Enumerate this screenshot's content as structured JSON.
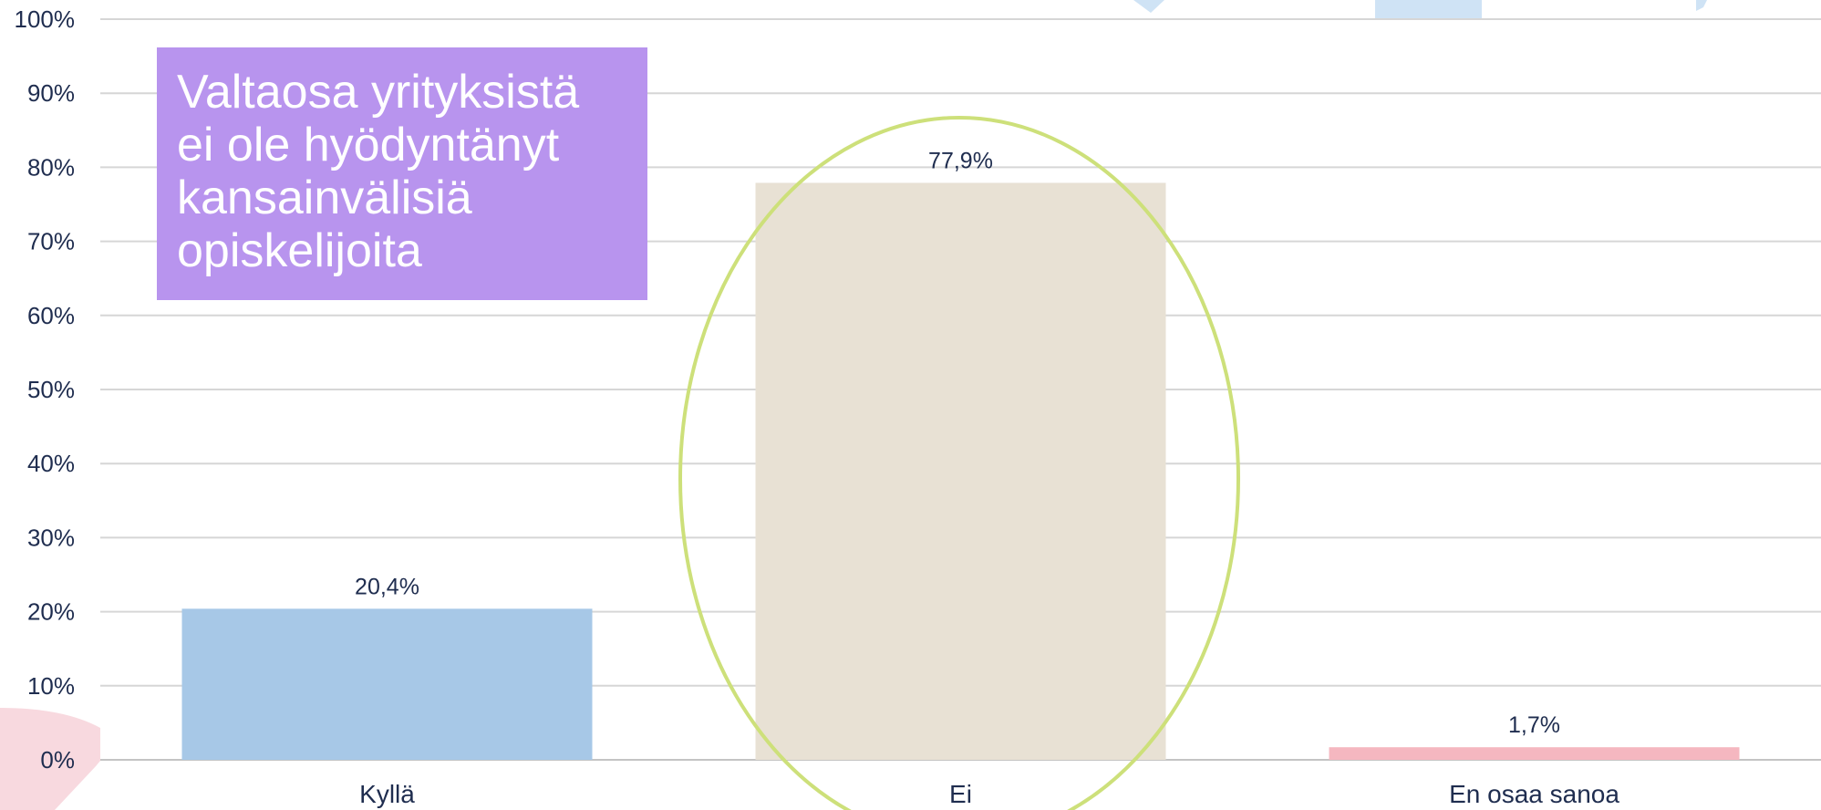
{
  "chart_data": {
    "type": "bar",
    "categories": [
      "Kyllä",
      "Ei",
      "En osaa sanoa"
    ],
    "values": [
      20.4,
      77.9,
      1.7
    ],
    "data_labels": [
      "20,4%",
      "77,9%",
      "1,7%"
    ],
    "ylim": [
      0,
      100
    ],
    "yticks": [
      0,
      10,
      20,
      30,
      40,
      50,
      60,
      70,
      80,
      90,
      100
    ],
    "ytick_labels": [
      "0%",
      "10%",
      "20%",
      "30%",
      "40%",
      "50%",
      "60%",
      "70%",
      "80%",
      "90%",
      "100%"
    ],
    "bar_colors": [
      "#a7c8e7",
      "#e8e1d4",
      "#f5b7c0"
    ],
    "grid": true,
    "highlight_color": "#cde07a",
    "title": "",
    "xlabel": "",
    "ylabel": ""
  },
  "callout": {
    "text": "Valtaosa yrityksistä ei ole hyödyntänyt kansainvälisiä opiskelijoita",
    "color": "#b894ee"
  },
  "decor_colors": {
    "pink_shape": "#f8d9df",
    "blue_shape": "#cfe3f5"
  }
}
